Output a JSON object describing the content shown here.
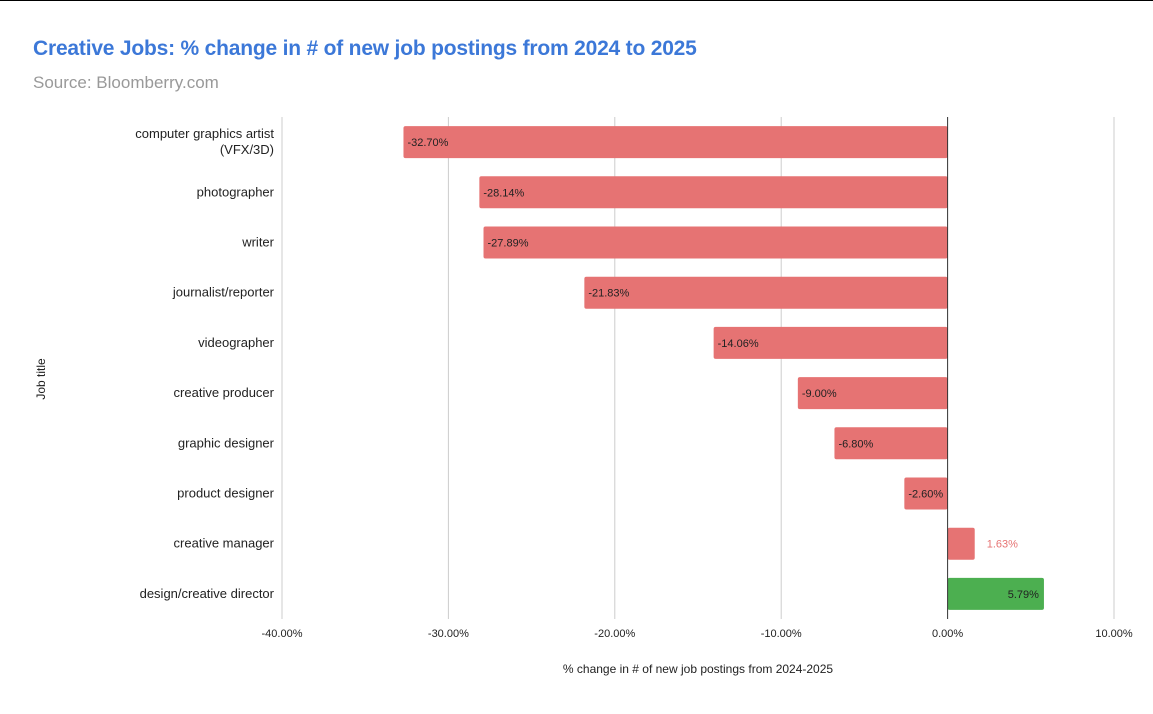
{
  "chart_data": {
    "type": "bar",
    "orientation": "horizontal",
    "title": "Creative Jobs: % change in # of new job postings from 2024 to 2025",
    "subtitle": "Source: Bloomberry.com",
    "xlabel": "% change in # of new job postings from 2024-2025",
    "ylabel": "Job title",
    "xlim": [
      -40,
      10
    ],
    "xticks": [
      "-40.00%",
      "-30.00%",
      "-20.00%",
      "-10.00%",
      "0.00%",
      "10.00%"
    ],
    "grid": true,
    "categories": [
      [
        "computer graphics artist",
        "(VFX/3D)"
      ],
      [
        "photographer"
      ],
      [
        "writer"
      ],
      [
        "journalist/reporter"
      ],
      [
        "videographer"
      ],
      [
        "creative producer"
      ],
      [
        "graphic designer"
      ],
      [
        "product designer"
      ],
      [
        "creative manager"
      ],
      [
        "design/creative director"
      ]
    ],
    "values": [
      -32.7,
      -28.14,
      -27.89,
      -21.83,
      -14.06,
      -9.0,
      -6.8,
      -2.6,
      1.63,
      5.79
    ],
    "data_labels": [
      "-32.70%",
      "-28.14%",
      "-27.89%",
      "-21.83%",
      "-14.06%",
      "-9.00%",
      "-6.80%",
      "-2.60%",
      "1.63%",
      "5.79%"
    ],
    "bar_colors": [
      "#e67373",
      "#e67373",
      "#e67373",
      "#e67373",
      "#e67373",
      "#e67373",
      "#e67373",
      "#e67373",
      "#e67373",
      "#4caf50"
    ]
  }
}
